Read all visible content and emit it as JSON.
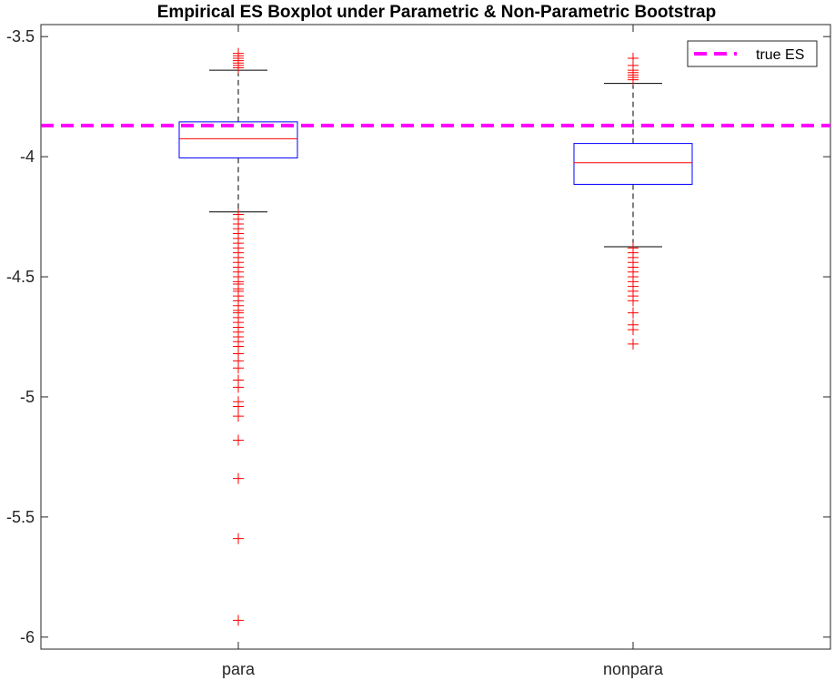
{
  "chart_data": {
    "type": "boxplot",
    "title": "Empirical ES Boxplot under Parametric & Non-Parametric Bootstrap",
    "xlabel": "",
    "ylabel": "",
    "categories": [
      "para",
      "nonpara"
    ],
    "ylim": [
      -6.05,
      -3.45
    ],
    "yticks": [
      -6,
      -5.5,
      -5,
      -4.5,
      -4,
      -3.5
    ],
    "ytick_labels": [
      "-6",
      "-5.5",
      "-5",
      "-4.5",
      "-4",
      "-3.5"
    ],
    "grid": false,
    "boxes": [
      {
        "category": "para",
        "q1": -4.005,
        "median": -3.925,
        "q3": -3.855,
        "whisker_low": -4.23,
        "whisker_high": -3.64,
        "outliers": [
          -3.57,
          -3.58,
          -3.59,
          -3.6,
          -3.61,
          -3.62,
          -3.63,
          -4.24,
          -4.26,
          -4.28,
          -4.3,
          -4.32,
          -4.34,
          -4.36,
          -4.38,
          -4.4,
          -4.42,
          -4.44,
          -4.46,
          -4.48,
          -4.5,
          -4.52,
          -4.53,
          -4.55,
          -4.56,
          -4.58,
          -4.6,
          -4.62,
          -4.64,
          -4.65,
          -4.67,
          -4.69,
          -4.71,
          -4.73,
          -4.75,
          -4.77,
          -4.79,
          -4.82,
          -4.85,
          -4.88,
          -4.93,
          -4.96,
          -5.02,
          -5.04,
          -5.08,
          -5.18,
          -5.34,
          -5.59,
          -5.93
        ]
      },
      {
        "category": "nonpara",
        "q1": -4.115,
        "median": -4.025,
        "q3": -3.945,
        "whisker_low": -4.375,
        "whisker_high": -3.695,
        "outliers": [
          -3.59,
          -3.62,
          -3.64,
          -3.65,
          -3.66,
          -3.67,
          -3.68,
          -4.38,
          -4.4,
          -4.42,
          -4.44,
          -4.46,
          -4.48,
          -4.5,
          -4.52,
          -4.54,
          -4.56,
          -4.58,
          -4.6,
          -4.65,
          -4.7,
          -4.72,
          -4.78
        ]
      }
    ],
    "reference_line": {
      "label": "true ES",
      "value": -3.87,
      "color": "#ff00ff",
      "style": "dashed"
    },
    "legend": {
      "position": "top-right",
      "entries": [
        "true ES"
      ]
    },
    "colors": {
      "box": "#0000ff",
      "median": "#ff0000",
      "whisker": "#000000",
      "outlier": "#ff0000"
    }
  }
}
